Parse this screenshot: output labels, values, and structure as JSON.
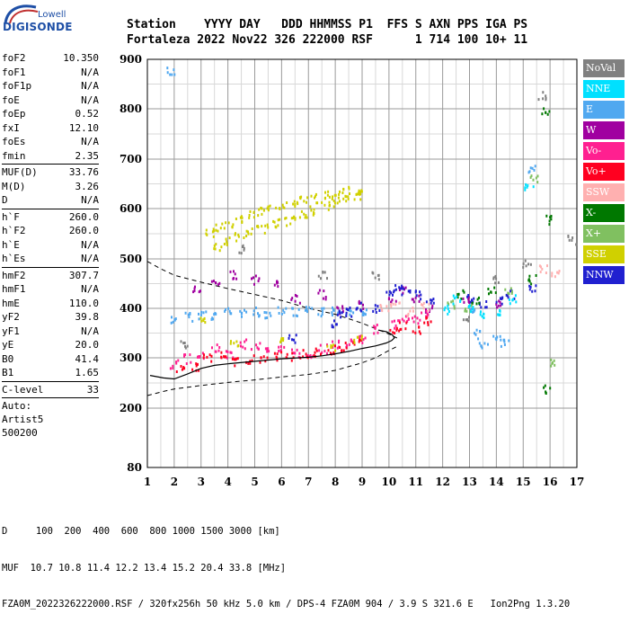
{
  "logo": {
    "top": "Lowell",
    "bottom": "DIGISONDE"
  },
  "header": {
    "line1": "Station    YYYY DAY   DDD HHMMSS P1  FFS S AXN PPS IGA PS",
    "line2": "Fortaleza 2022 Nov22 326 222000 RSF      1 714 100 10+ 11"
  },
  "params": {
    "group1": [
      {
        "label": "foF2",
        "value": "10.350"
      },
      {
        "label": "foF1",
        "value": "N/A"
      },
      {
        "label": "foF1p",
        "value": "N/A"
      },
      {
        "label": "foE",
        "value": "N/A"
      },
      {
        "label": "foEp",
        "value": "0.52"
      },
      {
        "label": "fxI",
        "value": "12.10"
      },
      {
        "label": "foEs",
        "value": "N/A"
      },
      {
        "label": "fmin",
        "value": "2.35"
      }
    ],
    "group2": [
      {
        "label": "MUF(D)",
        "value": "33.76"
      },
      {
        "label": "M(D)",
        "value": "3.26"
      },
      {
        "label": "D",
        "value": "N/A"
      }
    ],
    "group3": [
      {
        "label": "h`F",
        "value": "260.0"
      },
      {
        "label": "h`F2",
        "value": "260.0"
      },
      {
        "label": "h`E",
        "value": "N/A"
      },
      {
        "label": "h`Es",
        "value": "N/A"
      }
    ],
    "group4": [
      {
        "label": "hmF2",
        "value": "307.7"
      },
      {
        "label": "hmF1",
        "value": "N/A"
      },
      {
        "label": "hmE",
        "value": "110.0"
      },
      {
        "label": "yF2",
        "value": "39.8"
      },
      {
        "label": "yF1",
        "value": "N/A"
      },
      {
        "label": "yE",
        "value": "20.0"
      },
      {
        "label": "B0",
        "value": "41.4"
      },
      {
        "label": "B1",
        "value": "1.65"
      }
    ],
    "group5": [
      {
        "label": "C-level",
        "value": "33"
      }
    ],
    "autoscaling": [
      "Auto:",
      "Artist5",
      "500200"
    ]
  },
  "legend": [
    {
      "label": "NoVal",
      "color": "#808080"
    },
    {
      "label": "NNE",
      "color": "#00e0ff"
    },
    {
      "label": "E",
      "color": "#50a8f0"
    },
    {
      "label": "W",
      "color": "#a000a0"
    },
    {
      "label": "Vo-",
      "color": "#ff2090"
    },
    {
      "label": "Vo+",
      "color": "#ff0020"
    },
    {
      "label": "SSW",
      "color": "#ffb0b0"
    },
    {
      "label": "X-",
      "color": "#007800"
    },
    {
      "label": "X+",
      "color": "#80c060"
    },
    {
      "label": "SSE",
      "color": "#d0d000"
    },
    {
      "label": "NNW",
      "color": "#2020d0"
    }
  ],
  "footer": {
    "line1": "D     100  200  400  600  800 1000 1500 3000 [km]",
    "line2": "MUF  10.7 10.8 11.4 12.2 13.4 15.2 20.4 33.8 [MHz]",
    "line3": "FZA0M_2022326222000.RSF / 320fx256h 50 kHz 5.0 km / DPS-4 FZA0M 904 / 3.9 S 321.6 E   Ion2Png 1.3.20"
  },
  "chart_data": {
    "type": "scatter",
    "x_ticks": [
      "1",
      "2",
      "3",
      "4",
      "5",
      "6",
      "7",
      "8",
      "9",
      "10",
      "11",
      "12",
      "13",
      "14",
      "15",
      "16",
      "17"
    ],
    "y_ticks": [
      "200",
      "300",
      "400",
      "500",
      "600",
      "700",
      "800",
      "900"
    ],
    "y_bottom_tick": "80",
    "xlim": [
      1,
      17
    ],
    "ylim": [
      80,
      900
    ],
    "grid": true,
    "legend_position": "right",
    "series": [
      {
        "name": "E",
        "color": "#50a8f0",
        "points": [
          [
            2.0,
            380
          ],
          [
            2.5,
            385
          ],
          [
            3.0,
            390
          ],
          [
            3.5,
            388
          ],
          [
            4.0,
            395
          ],
          [
            4.5,
            392
          ],
          [
            5.0,
            395
          ],
          [
            5.5,
            392
          ],
          [
            6.0,
            398
          ],
          [
            6.5,
            394
          ],
          [
            7.0,
            396
          ],
          [
            7.5,
            395
          ],
          [
            8.0,
            396
          ],
          [
            8.5,
            397
          ],
          [
            9.0,
            398
          ],
          [
            13.0,
            400
          ],
          [
            13.3,
            350
          ],
          [
            13.5,
            330
          ],
          [
            14.0,
            340
          ],
          [
            14.3,
            330
          ],
          [
            15.3,
            680
          ],
          [
            1.85,
            880
          ]
        ]
      },
      {
        "name": "W",
        "color": "#a000a0",
        "points": [
          [
            2.8,
            440
          ],
          [
            3.5,
            455
          ],
          [
            4.2,
            470
          ],
          [
            5.0,
            460
          ],
          [
            5.8,
            450
          ],
          [
            6.5,
            420
          ],
          [
            7.5,
            430
          ],
          [
            8.2,
            400
          ],
          [
            9.0,
            410
          ],
          [
            10.1,
            420
          ],
          [
            10.5,
            440
          ],
          [
            11.0,
            420
          ],
          [
            11.5,
            400
          ],
          [
            12.8,
            420
          ],
          [
            14.1,
            410
          ]
        ]
      },
      {
        "name": "Vo-",
        "color": "#ff2090",
        "points": [
          [
            2.0,
            290
          ],
          [
            2.5,
            300
          ],
          [
            3.0,
            305
          ],
          [
            3.5,
            320
          ],
          [
            4.0,
            310
          ],
          [
            4.5,
            330
          ],
          [
            5.0,
            325
          ],
          [
            5.5,
            315
          ],
          [
            6.0,
            318
          ],
          [
            6.5,
            312
          ],
          [
            7.0,
            310
          ],
          [
            7.5,
            320
          ],
          [
            8.0,
            330
          ],
          [
            8.5,
            330
          ],
          [
            9.0,
            340
          ],
          [
            9.5,
            360
          ],
          [
            10.2,
            370
          ],
          [
            10.6,
            385
          ],
          [
            11.0,
            380
          ],
          [
            11.3,
            390
          ]
        ]
      },
      {
        "name": "Vo+",
        "color": "#ff0020",
        "points": [
          [
            2.2,
            280
          ],
          [
            2.8,
            285
          ],
          [
            3.2,
            300
          ],
          [
            3.8,
            305
          ],
          [
            4.3,
            295
          ],
          [
            4.8,
            300
          ],
          [
            5.3,
            300
          ],
          [
            5.8,
            305
          ],
          [
            6.3,
            305
          ],
          [
            6.8,
            310
          ],
          [
            7.3,
            312
          ],
          [
            7.8,
            318
          ],
          [
            8.3,
            325
          ],
          [
            8.8,
            330
          ],
          [
            10.1,
            360
          ],
          [
            10.5,
            365
          ],
          [
            11.0,
            360
          ],
          [
            11.4,
            375
          ]
        ]
      },
      {
        "name": "SSE",
        "color": "#d0d000",
        "points": [
          [
            3.3,
            552
          ],
          [
            3.6,
            565
          ],
          [
            4.0,
            570
          ],
          [
            4.4,
            580
          ],
          [
            4.8,
            590
          ],
          [
            5.2,
            595
          ],
          [
            5.6,
            600
          ],
          [
            6.0,
            610
          ],
          [
            6.4,
            612
          ],
          [
            6.8,
            618
          ],
          [
            7.2,
            622
          ],
          [
            7.6,
            628
          ],
          [
            8.0,
            632
          ],
          [
            8.4,
            637
          ],
          [
            8.8,
            640
          ],
          [
            3.6,
            525
          ],
          [
            4.0,
            538
          ],
          [
            4.4,
            545
          ],
          [
            4.8,
            555
          ],
          [
            5.2,
            562
          ],
          [
            5.6,
            570
          ],
          [
            6.0,
            575
          ],
          [
            6.4,
            580
          ],
          [
            6.8,
            588
          ],
          [
            7.2,
            598
          ],
          [
            7.6,
            606
          ],
          [
            8.0,
            614
          ],
          [
            8.4,
            622
          ],
          [
            8.8,
            630
          ],
          [
            3.1,
            380
          ],
          [
            4.2,
            330
          ],
          [
            6.0,
            335
          ],
          [
            7.8,
            325
          ],
          [
            8.8,
            340
          ]
        ]
      },
      {
        "name": "NNW",
        "color": "#2020d0",
        "points": [
          [
            8.1,
            390
          ],
          [
            8.5,
            395
          ],
          [
            8.9,
            405
          ],
          [
            9.5,
            400
          ],
          [
            10.0,
            430
          ],
          [
            10.3,
            440
          ],
          [
            10.6,
            435
          ],
          [
            11.0,
            430
          ],
          [
            11.5,
            420
          ],
          [
            13.0,
            420
          ],
          [
            13.5,
            410
          ],
          [
            14.1,
            420
          ],
          [
            14.5,
            430
          ],
          [
            15.3,
            440
          ],
          [
            7.9,
            370
          ],
          [
            6.4,
            340
          ]
        ]
      },
      {
        "name": "X-",
        "color": "#007800",
        "points": [
          [
            12.6,
            430
          ],
          [
            13.2,
            420
          ],
          [
            13.8,
            440
          ],
          [
            15.3,
            460
          ],
          [
            15.8,
            800
          ],
          [
            15.9,
            580
          ],
          [
            15.9,
            240
          ]
        ]
      },
      {
        "name": "X+",
        "color": "#80c060",
        "points": [
          [
            12.3,
            410
          ],
          [
            12.9,
            400
          ],
          [
            14.4,
            440
          ],
          [
            15.4,
            660
          ],
          [
            16.1,
            290
          ]
        ]
      },
      {
        "name": "NNE",
        "color": "#00e0ff",
        "points": [
          [
            12.1,
            400
          ],
          [
            12.5,
            420
          ],
          [
            13.1,
            400
          ],
          [
            13.5,
            392
          ],
          [
            14.0,
            395
          ],
          [
            14.6,
            420
          ],
          [
            15.2,
            645
          ]
        ]
      },
      {
        "name": "SSW",
        "color": "#ffb0b0",
        "points": [
          [
            9.8,
            400
          ],
          [
            10.2,
            410
          ],
          [
            10.8,
            395
          ],
          [
            11.3,
            405
          ],
          [
            15.7,
            480
          ],
          [
            16.2,
            470
          ]
        ]
      },
      {
        "name": "NoVal",
        "color": "#808080",
        "points": [
          [
            2.3,
            330
          ],
          [
            4.5,
            520
          ],
          [
            7.5,
            470
          ],
          [
            9.5,
            470
          ],
          [
            12.8,
            380
          ],
          [
            13.9,
            460
          ],
          [
            15.1,
            490
          ],
          [
            15.7,
            830
          ],
          [
            16.8,
            540
          ]
        ]
      }
    ],
    "profile_curve": [
      [
        1.1,
        265
      ],
      [
        1.6,
        260
      ],
      [
        2.0,
        258
      ],
      [
        2.5,
        268
      ],
      [
        3.0,
        279
      ],
      [
        3.5,
        285
      ],
      [
        4.0,
        288
      ],
      [
        5.0,
        293
      ],
      [
        6.0,
        298
      ],
      [
        7.0,
        301
      ],
      [
        7.5,
        304
      ],
      [
        8.0,
        308
      ],
      [
        8.5,
        313
      ],
      [
        9.0,
        319
      ],
      [
        9.5,
        324
      ],
      [
        9.9,
        330
      ],
      [
        10.1,
        335
      ],
      [
        10.2,
        340
      ],
      [
        10.15,
        345
      ],
      [
        10.05,
        349
      ],
      [
        9.9,
        353
      ],
      [
        9.6,
        356
      ]
    ],
    "dashed_curve_upper": [
      [
        1.0,
        495
      ],
      [
        1.5,
        480
      ],
      [
        2.0,
        467
      ],
      [
        3.0,
        453
      ],
      [
        4.0,
        440
      ],
      [
        5.0,
        428
      ],
      [
        6.0,
        416
      ],
      [
        7.0,
        400
      ],
      [
        8.0,
        388
      ],
      [
        9.0,
        370
      ],
      [
        10.0,
        348
      ],
      [
        10.3,
        340
      ]
    ],
    "dashed_curve_lower": [
      [
        1.0,
        225
      ],
      [
        1.5,
        232
      ],
      [
        2.0,
        238
      ],
      [
        3.0,
        245
      ],
      [
        4.0,
        251
      ],
      [
        5.0,
        256
      ],
      [
        6.0,
        262
      ],
      [
        7.0,
        267
      ],
      [
        8.0,
        275
      ],
      [
        9.0,
        290
      ],
      [
        9.5,
        300
      ],
      [
        10.0,
        315
      ],
      [
        10.3,
        323
      ]
    ]
  }
}
